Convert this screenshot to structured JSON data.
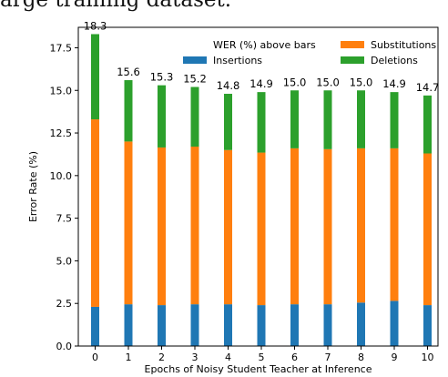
{
  "header_text": "arge training dataset.",
  "chart_data": {
    "type": "bar",
    "stacked": true,
    "categories": [
      "0",
      "1",
      "2",
      "3",
      "4",
      "5",
      "6",
      "7",
      "8",
      "9",
      "10"
    ],
    "series": [
      {
        "name": "Insertions",
        "color": "#1f77b4",
        "values": [
          2.3,
          2.45,
          2.4,
          2.45,
          2.45,
          2.4,
          2.45,
          2.45,
          2.55,
          2.65,
          2.4
        ]
      },
      {
        "name": "Substitutions",
        "color": "#ff7f0e",
        "values": [
          11.0,
          9.55,
          9.25,
          9.25,
          9.05,
          8.95,
          9.15,
          9.1,
          9.05,
          8.95,
          8.9
        ]
      },
      {
        "name": "Deletions",
        "color": "#2ca02c",
        "values": [
          5.0,
          3.6,
          3.65,
          3.5,
          3.3,
          3.55,
          3.4,
          3.45,
          3.4,
          3.3,
          3.4
        ]
      }
    ],
    "totals": [
      "18.3",
      "15.6",
      "15.3",
      "15.2",
      "14.8",
      "14.9",
      "15.0",
      "15.0",
      "15.0",
      "14.9",
      "14.7"
    ],
    "legend_title": "WER (%) above bars",
    "legend_placement": "top-right",
    "xlabel": "Epochs of Noisy Student Teacher at Inference",
    "ylabel": "Error Rate (%)",
    "ylim": [
      0,
      18.7
    ],
    "yticks": [
      "0.0",
      "2.5",
      "5.0",
      "7.5",
      "10.0",
      "12.5",
      "15.0",
      "17.5"
    ],
    "grid": false
  }
}
